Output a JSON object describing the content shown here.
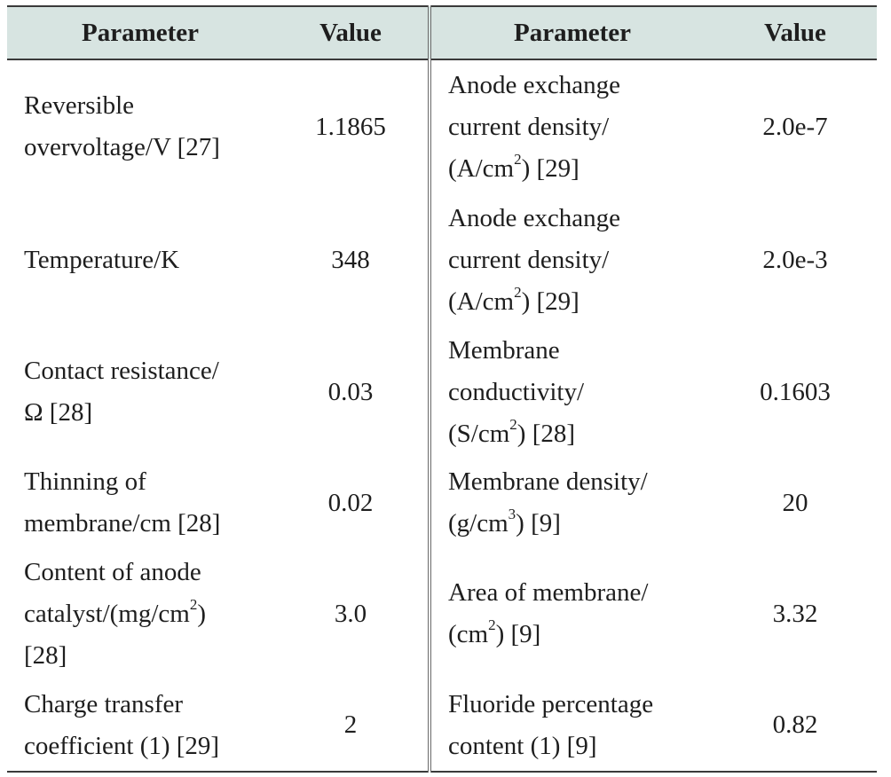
{
  "header": {
    "param_left": "Parameter",
    "value_left": "Value",
    "param_right": "Parameter",
    "value_right": "Value"
  },
  "rows": [
    {
      "left_lines": [
        "Reversible",
        "overvoltage/V [27]"
      ],
      "left_value": "1.1865",
      "right_lines": [
        "Anode exchange",
        "current density/",
        "(A/cm",
        "2",
        ") [29]"
      ],
      "right_value": "2.0e-7"
    },
    {
      "left_lines": [
        "Temperature/K"
      ],
      "left_value": "348",
      "right_lines": [
        "Anode exchange",
        "current density/",
        "(A/cm",
        "2",
        ") [29]"
      ],
      "right_value": "2.0e-3"
    },
    {
      "left_lines": [
        "Contact resistance/",
        "Ω [28]"
      ],
      "left_value": "0.03",
      "right_lines": [
        "Membrane",
        "conductivity/",
        "(S/cm",
        "2",
        ") [28]"
      ],
      "right_value": "0.1603"
    },
    {
      "left_lines": [
        "Thinning of",
        "membrane/cm [28]"
      ],
      "left_value": "0.02",
      "right_lines": [
        "Membrane density/",
        "(g/cm",
        "3",
        ") [9]"
      ],
      "right_value": "20"
    },
    {
      "left_lines": [
        "Content of anode",
        "catalyst/(mg/cm",
        "2",
        ")",
        "[28]"
      ],
      "left_value": "3.0",
      "right_lines": [
        "Area of membrane/",
        "(cm",
        "2",
        ") [9]"
      ],
      "right_value": "3.32"
    },
    {
      "left_lines": [
        "Charge transfer",
        "coefficient (1) [29]"
      ],
      "left_value": "2",
      "right_lines": [
        "Fluoride percentage",
        "content (1) [9]"
      ],
      "right_value": "0.82"
    }
  ]
}
